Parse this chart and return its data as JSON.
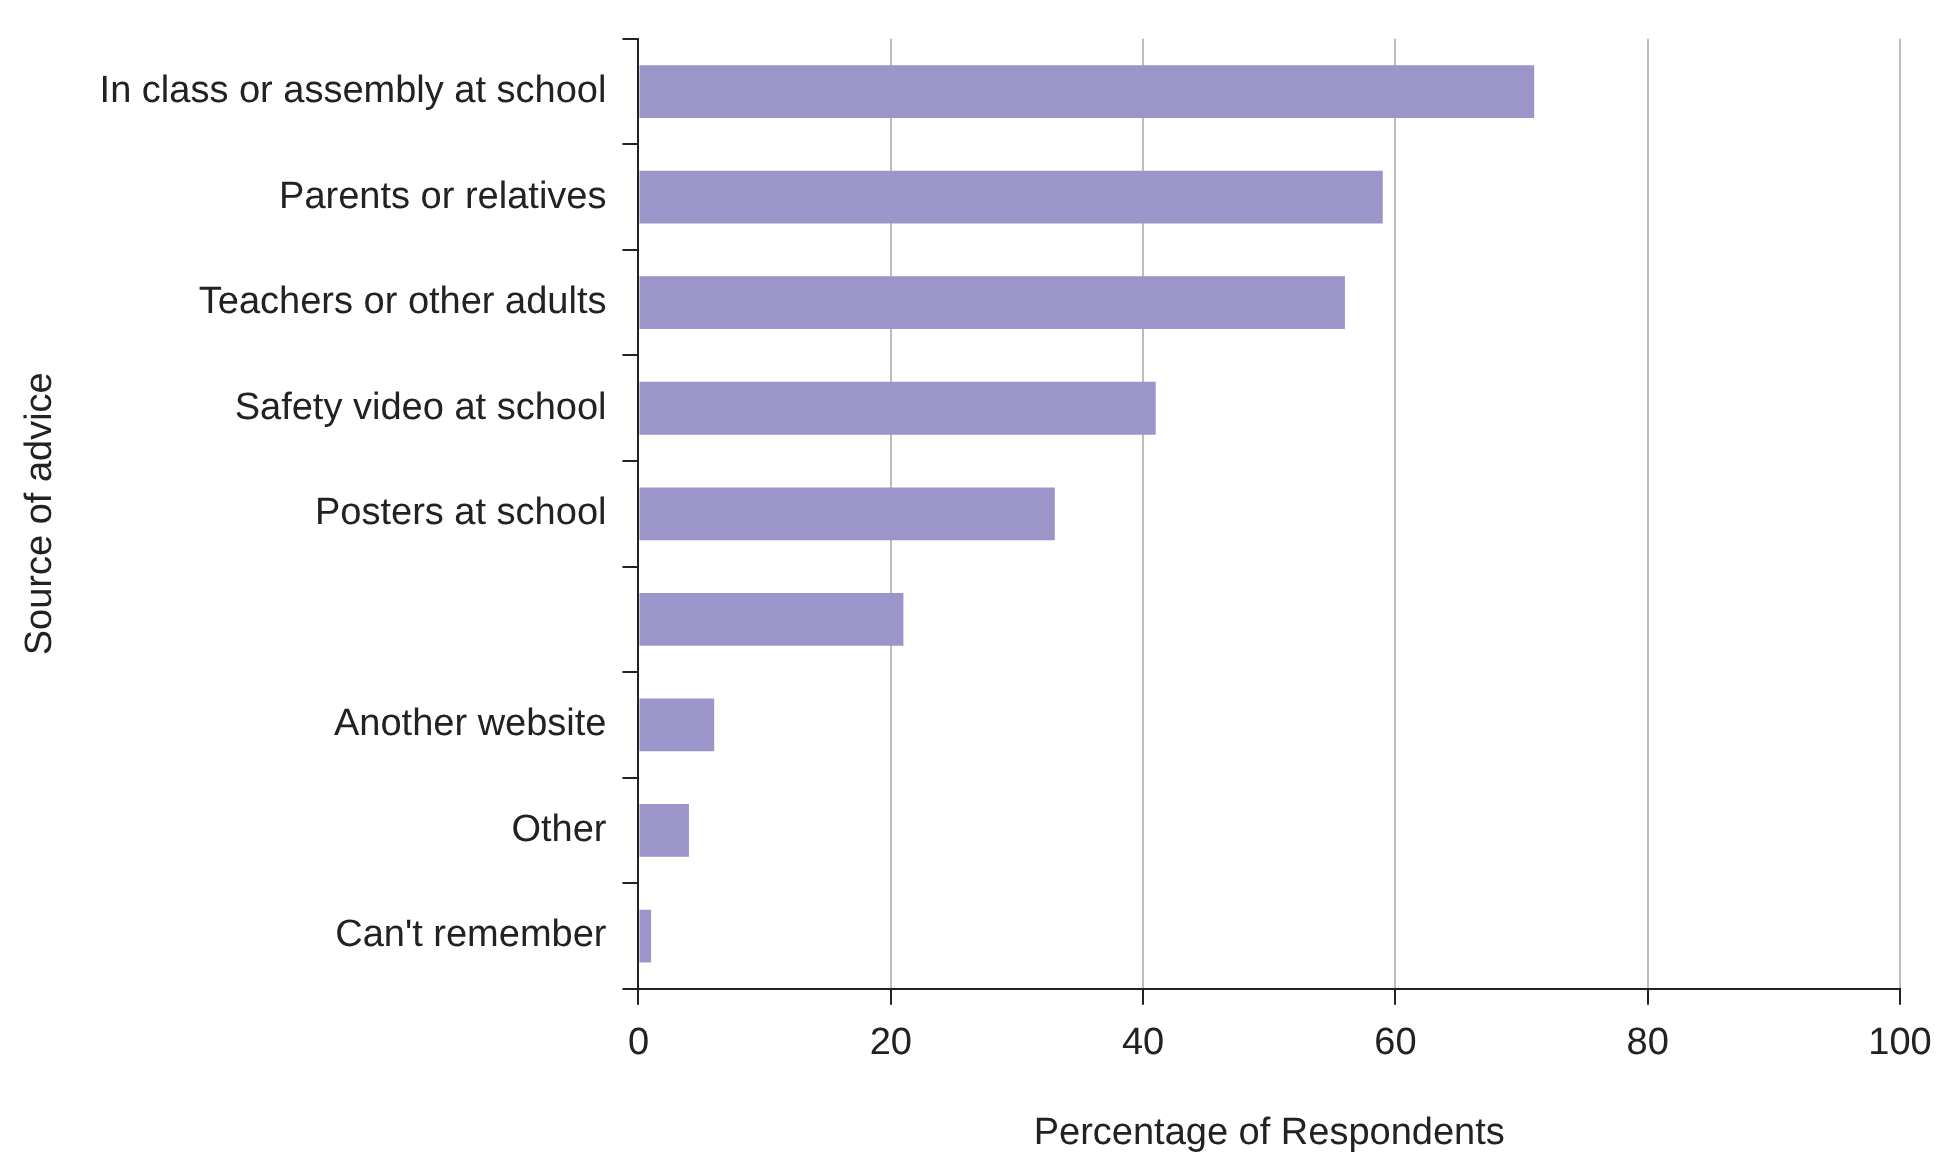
{
  "chart_data": {
    "type": "bar",
    "orientation": "horizontal",
    "xlabel": "Percentage of Respondents",
    "ylabel": "Source of advice",
    "categories": [
      "In class or assembly at school",
      "Parents or relatives",
      "Teachers or other adults",
      "Safety video at school",
      "Posters at school",
      null,
      "Another website",
      "Other",
      "Can't remember"
    ],
    "values": [
      71,
      59,
      56,
      41,
      33,
      21,
      6,
      4,
      1
    ],
    "color": "#9b95c9",
    "xlim": [
      0,
      100
    ],
    "xticks": [
      0,
      20,
      40,
      60,
      80,
      100
    ],
    "grid": "x",
    "legend": false
  }
}
